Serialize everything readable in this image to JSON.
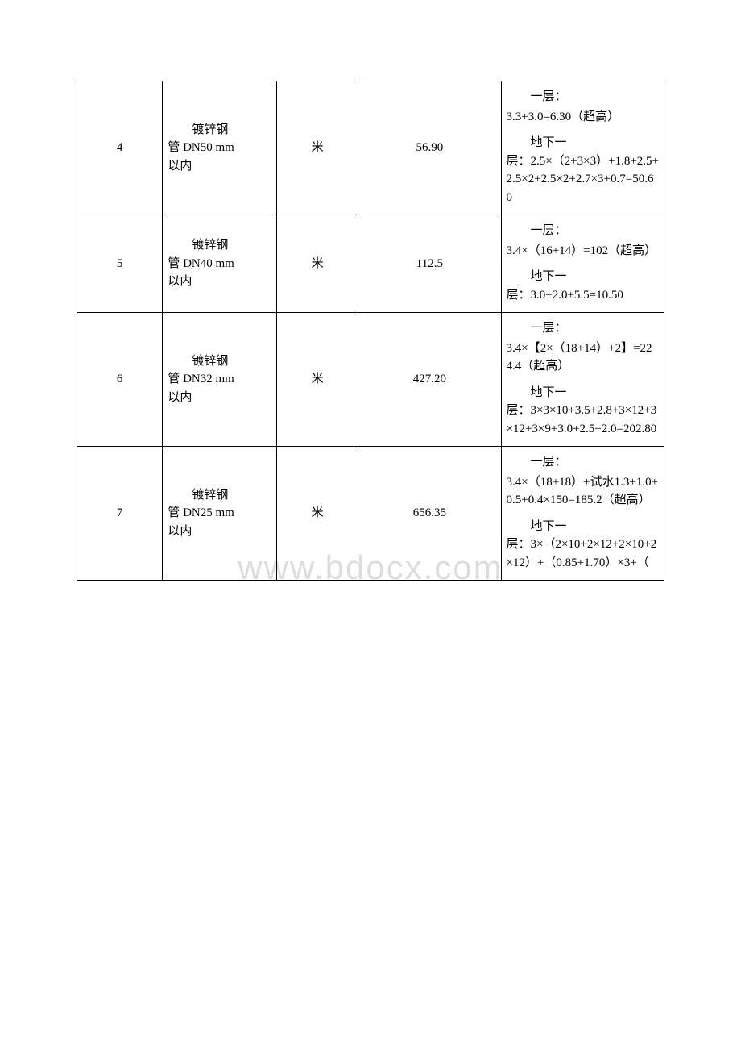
{
  "watermark": "www.bdocx.com",
  "table": {
    "columns": {
      "num_width": 105,
      "name_width": 140,
      "unit_width": 100,
      "qty_width": 175,
      "calc_width": 200
    },
    "border_color": "#000000",
    "background_color": "#ffffff",
    "font_family": "SimSun",
    "font_size": 15,
    "watermark_color": "#dddddd",
    "watermark_fontsize": 42,
    "rows": [
      {
        "num": "4",
        "name_prefix": "　　镀锌钢",
        "name_line2": "管 DN50 mm",
        "name_line3": "以内",
        "unit": "米",
        "qty": "56.90",
        "calc_para1_indent": "　　一层：",
        "calc_para1_body": "3.3+3.0=6.30（超高）",
        "calc_para2_indent": "　　地下一",
        "calc_para2_body": "层：2.5×（2+3×3）+1.8+2.5+2.5×2+2.5×2+2.7×3+0.7=50.60"
      },
      {
        "num": "5",
        "name_prefix": "　　镀锌钢",
        "name_line2": "管 DN40 mm",
        "name_line3": "以内",
        "unit": "米",
        "qty": "112.5",
        "calc_para1_indent": "　　一层：",
        "calc_para1_body": "3.4×（16+14）=102（超高）",
        "calc_para2_indent": "　　地下一",
        "calc_para2_body": "层：3.0+2.0+5.5=10.50"
      },
      {
        "num": "6",
        "name_prefix": "　　镀锌钢",
        "name_line2": "管 DN32 mm",
        "name_line3": "以内",
        "unit": "米",
        "qty": "427.20",
        "calc_para1_indent": "　　一层：",
        "calc_para1_body": "3.4×【2×（18+14）+2】=224.4（超高）",
        "calc_para2_indent": "　　地下一",
        "calc_para2_body": "层：3×3×10+3.5+2.8+3×12+3×12+3×9+3.0+2.5+2.0=202.80"
      },
      {
        "num": "7",
        "name_prefix": "　　镀锌钢",
        "name_line2": "管 DN25 mm",
        "name_line3": "以内",
        "unit": "米",
        "qty": "656.35",
        "calc_para1_indent": "　　一层：",
        "calc_para1_body": "3.4×（18+18）+试水1.3+1.0+0.5+0.4×150=185.2（超高）",
        "calc_para2_indent": "　　地下一",
        "calc_para2_body": "层：3×（2×10+2×12+2×10+2×12）+（0.85+1.70）×3+（"
      }
    ]
  }
}
